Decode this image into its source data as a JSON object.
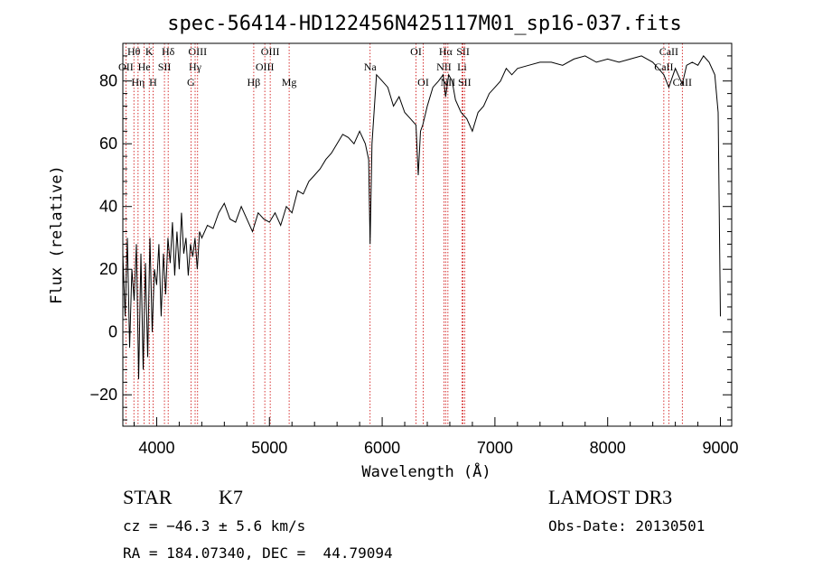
{
  "chart_data": {
    "type": "line",
    "title": "spec-56414-HD122456N425117M01_sp16-037.fits",
    "xlabel": "Wavelength (Å)",
    "ylabel": "Flux (relative)",
    "xlim": [
      3700,
      9100
    ],
    "ylim": [
      -30,
      92
    ],
    "x_ticks": [
      4000,
      5000,
      6000,
      7000,
      8000,
      9000
    ],
    "y_ticks": [
      -20,
      0,
      20,
      40,
      60,
      80
    ],
    "grid": false,
    "series": [
      {
        "x": [
          3700,
          3720,
          3740,
          3760,
          3780,
          3800,
          3820,
          3840,
          3860,
          3880,
          3900,
          3920,
          3940,
          3960,
          3980,
          4000,
          4020,
          4040,
          4060,
          4080,
          4100,
          4120,
          4140,
          4160,
          4180,
          4200,
          4220,
          4240,
          4260,
          4280,
          4300,
          4320,
          4340,
          4360,
          4380,
          4400,
          4450,
          4500,
          4550,
          4600,
          4650,
          4700,
          4750,
          4800,
          4850,
          4900,
          4950,
          5000,
          5050,
          5100,
          5150,
          5200,
          5250,
          5300,
          5350,
          5400,
          5450,
          5500,
          5550,
          5600,
          5650,
          5700,
          5750,
          5800,
          5850,
          5880,
          5893,
          5910,
          5950,
          6000,
          6050,
          6100,
          6150,
          6200,
          6250,
          6300,
          6320,
          6340,
          6360,
          6400,
          6450,
          6500,
          6540,
          6563,
          6590,
          6620,
          6650,
          6700,
          6750,
          6800,
          6850,
          6900,
          6950,
          7000,
          7050,
          7100,
          7150,
          7200,
          7300,
          7400,
          7500,
          7600,
          7700,
          7800,
          7900,
          8000,
          8100,
          8200,
          8300,
          8400,
          8450,
          8498,
          8520,
          8542,
          8600,
          8662,
          8700,
          8750,
          8800,
          8850,
          8900,
          8950,
          8980,
          9000
        ],
        "y": [
          25,
          5,
          30,
          -5,
          20,
          10,
          28,
          -15,
          25,
          -12,
          22,
          -8,
          30,
          0,
          20,
          15,
          28,
          5,
          25,
          12,
          30,
          22,
          35,
          18,
          32,
          20,
          38,
          25,
          30,
          18,
          28,
          24,
          30,
          20,
          32,
          30,
          34,
          33,
          38,
          41,
          36,
          35,
          40,
          36,
          32,
          38,
          36,
          35,
          38,
          34,
          40,
          38,
          45,
          44,
          48,
          50,
          52,
          55,
          57,
          60,
          63,
          62,
          60,
          64,
          60,
          55,
          28,
          60,
          82,
          80,
          78,
          72,
          75,
          70,
          68,
          66,
          50,
          64,
          66,
          72,
          78,
          80,
          82,
          75,
          82,
          80,
          74,
          70,
          68,
          64,
          70,
          72,
          76,
          78,
          80,
          84,
          82,
          84,
          85,
          86,
          86,
          85,
          87,
          88,
          86,
          87,
          86,
          87,
          88,
          86,
          84,
          82,
          80,
          78,
          84,
          79,
          85,
          86,
          85,
          88,
          86,
          82,
          70,
          5
        ]
      }
    ],
    "line_markers": [
      {
        "label": "Hθ",
        "x": 3798,
        "row": 1
      },
      {
        "label": "OII",
        "x": 3727,
        "row": 2
      },
      {
        "label": "Hη",
        "x": 3835,
        "row": 3
      },
      {
        "label": "K",
        "x": 3934,
        "row": 1
      },
      {
        "label": "He",
        "x": 3889,
        "row": 2
      },
      {
        "label": "H",
        "x": 3968,
        "row": 3
      },
      {
        "label": "SII",
        "x": 4069,
        "row": 2
      },
      {
        "label": "Hδ",
        "x": 4102,
        "row": 1
      },
      {
        "label": "OIII",
        "x": 4363,
        "row": 1
      },
      {
        "label": "Hγ",
        "x": 4341,
        "row": 2
      },
      {
        "label": "G",
        "x": 4304,
        "row": 3
      },
      {
        "label": "OIII",
        "x": 5007,
        "row": 1
      },
      {
        "label": "OIII",
        "x": 4959,
        "row": 2
      },
      {
        "label": "Hβ",
        "x": 4861,
        "row": 3
      },
      {
        "label": "Mg",
        "x": 5175,
        "row": 3
      },
      {
        "label": "Na",
        "x": 5893,
        "row": 2
      },
      {
        "label": "OI",
        "x": 6300,
        "row": 1
      },
      {
        "label": "OI",
        "x": 6364,
        "row": 3
      },
      {
        "label": "Hα",
        "x": 6563,
        "row": 1
      },
      {
        "label": "NII",
        "x": 6548,
        "row": 2
      },
      {
        "label": "NII",
        "x": 6583,
        "row": 3
      },
      {
        "label": "SII",
        "x": 6717,
        "row": 1
      },
      {
        "label": "Li",
        "x": 6708,
        "row": 2
      },
      {
        "label": "SII",
        "x": 6731,
        "row": 3
      },
      {
        "label": "CaII",
        "x": 8542,
        "row": 1
      },
      {
        "label": "CaII",
        "x": 8498,
        "row": 2
      },
      {
        "label": "CaII",
        "x": 8662,
        "row": 3
      }
    ],
    "colors": {
      "spectrum": "#000000",
      "markers": "#cc0000"
    }
  },
  "info": {
    "obj_class": "STAR",
    "subclass": "K7",
    "survey": "LAMOST DR3",
    "redshift": "cz = −46.3 ± 5.6 km/s",
    "obs_date": "Obs-Date: 20130501",
    "coords": "RA = 184.07340, DEC =  44.79094"
  }
}
